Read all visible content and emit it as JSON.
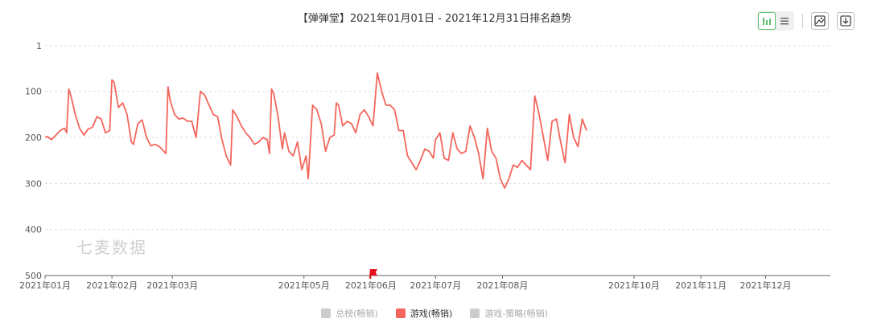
{
  "title": "【弹弹堂】2021年01月01日 - 2021年12月31日排名趋势",
  "watermark": "七麦数据",
  "toolbar": {
    "bar_icon": "bar-chart-icon",
    "list_icon": "list-icon",
    "image_icon": "image-icon",
    "download_icon": "download-icon"
  },
  "legend": [
    {
      "label": "总榜(畅销)",
      "color": "#cccccc",
      "active": false
    },
    {
      "label": "游戏(畅销)",
      "color": "#f4665c",
      "active": true
    },
    {
      "label": "游戏-策略(畅销)",
      "color": "#cccccc",
      "active": false
    }
  ],
  "colors": {
    "line": "#f4665c",
    "grid": "#dddddd",
    "axis": "#666666",
    "marker": "#e3121b"
  },
  "chart_data": {
    "type": "line",
    "y_inverted": true,
    "ylim": [
      1,
      500
    ],
    "y_ticks": [
      "1",
      "100",
      "200",
      "300",
      "400",
      "500"
    ],
    "y_tick_values": [
      1,
      100,
      200,
      300,
      400,
      500
    ],
    "x_ticks": [
      "2021年01月",
      "2021年02月",
      "2021年03月",
      "2021年05月",
      "2021年06月",
      "2021年07月",
      "2021年08月",
      "2021年10月",
      "2021年11月",
      "2021年12月"
    ],
    "x_tick_dates": [
      "2021-01-01",
      "2021-02-01",
      "2021-03-01",
      "2021-05-01",
      "2021-06-01",
      "2021-07-01",
      "2021-08-01",
      "2021-10-01",
      "2021-11-01",
      "2021-12-01"
    ],
    "x_range": [
      "2021-01-01",
      "2021-12-31"
    ],
    "grid": true,
    "legend_position": "bottom",
    "series": [
      {
        "name": "游戏(畅销)",
        "points": [
          [
            "2021-01-01",
            200
          ],
          [
            "2021-01-02",
            198
          ],
          [
            "2021-01-04",
            205
          ],
          [
            "2021-01-06",
            195
          ],
          [
            "2021-01-08",
            185
          ],
          [
            "2021-01-10",
            180
          ],
          [
            "2021-01-11",
            190
          ],
          [
            "2021-01-12",
            95
          ],
          [
            "2021-01-13",
            110
          ],
          [
            "2021-01-15",
            150
          ],
          [
            "2021-01-17",
            180
          ],
          [
            "2021-01-19",
            195
          ],
          [
            "2021-01-21",
            182
          ],
          [
            "2021-01-23",
            178
          ],
          [
            "2021-01-25",
            155
          ],
          [
            "2021-01-27",
            160
          ],
          [
            "2021-01-29",
            190
          ],
          [
            "2021-01-31",
            185
          ],
          [
            "2021-02-01",
            75
          ],
          [
            "2021-02-02",
            80
          ],
          [
            "2021-02-04",
            135
          ],
          [
            "2021-02-06",
            125
          ],
          [
            "2021-02-08",
            150
          ],
          [
            "2021-02-10",
            210
          ],
          [
            "2021-02-11",
            215
          ],
          [
            "2021-02-13",
            170
          ],
          [
            "2021-02-15",
            162
          ],
          [
            "2021-02-17",
            200
          ],
          [
            "2021-02-19",
            218
          ],
          [
            "2021-02-21",
            215
          ],
          [
            "2021-02-23",
            220
          ],
          [
            "2021-02-25",
            230
          ],
          [
            "2021-02-26",
            235
          ],
          [
            "2021-02-27",
            90
          ],
          [
            "2021-02-28",
            120
          ],
          [
            "2021-03-02",
            150
          ],
          [
            "2021-03-04",
            160
          ],
          [
            "2021-03-06",
            158
          ],
          [
            "2021-03-08",
            165
          ],
          [
            "2021-03-10",
            165
          ],
          [
            "2021-03-12",
            200
          ],
          [
            "2021-03-14",
            100
          ],
          [
            "2021-03-16",
            108
          ],
          [
            "2021-03-18",
            130
          ],
          [
            "2021-03-20",
            150
          ],
          [
            "2021-03-22",
            155
          ],
          [
            "2021-03-24",
            205
          ],
          [
            "2021-03-26",
            240
          ],
          [
            "2021-03-28",
            260
          ],
          [
            "2021-03-29",
            140
          ],
          [
            "2021-03-31",
            155
          ],
          [
            "2021-04-02",
            175
          ],
          [
            "2021-04-04",
            190
          ],
          [
            "2021-04-06",
            200
          ],
          [
            "2021-04-08",
            215
          ],
          [
            "2021-04-10",
            210
          ],
          [
            "2021-04-12",
            200
          ],
          [
            "2021-04-14",
            205
          ],
          [
            "2021-04-15",
            235
          ],
          [
            "2021-04-16",
            95
          ],
          [
            "2021-04-17",
            105
          ],
          [
            "2021-04-19",
            155
          ],
          [
            "2021-04-21",
            225
          ],
          [
            "2021-04-22",
            190
          ],
          [
            "2021-04-24",
            230
          ],
          [
            "2021-04-26",
            240
          ],
          [
            "2021-04-28",
            210
          ],
          [
            "2021-04-30",
            270
          ],
          [
            "2021-05-02",
            240
          ],
          [
            "2021-05-03",
            290
          ],
          [
            "2021-05-05",
            130
          ],
          [
            "2021-05-07",
            140
          ],
          [
            "2021-05-09",
            170
          ],
          [
            "2021-05-11",
            230
          ],
          [
            "2021-05-13",
            200
          ],
          [
            "2021-05-15",
            195
          ],
          [
            "2021-05-16",
            125
          ],
          [
            "2021-05-17",
            130
          ],
          [
            "2021-05-19",
            175
          ],
          [
            "2021-05-21",
            165
          ],
          [
            "2021-05-23",
            170
          ],
          [
            "2021-05-25",
            190
          ],
          [
            "2021-05-27",
            150
          ],
          [
            "2021-05-29",
            140
          ],
          [
            "2021-05-31",
            155
          ],
          [
            "2021-06-02",
            175
          ],
          [
            "2021-06-04",
            60
          ],
          [
            "2021-06-06",
            100
          ],
          [
            "2021-06-08",
            130
          ],
          [
            "2021-06-10",
            130
          ],
          [
            "2021-06-12",
            140
          ],
          [
            "2021-06-14",
            185
          ],
          [
            "2021-06-16",
            185
          ],
          [
            "2021-06-18",
            240
          ],
          [
            "2021-06-20",
            255
          ],
          [
            "2021-06-22",
            270
          ],
          [
            "2021-06-24",
            250
          ],
          [
            "2021-06-26",
            225
          ],
          [
            "2021-06-28",
            230
          ],
          [
            "2021-06-30",
            245
          ],
          [
            "2021-07-01",
            205
          ],
          [
            "2021-07-03",
            190
          ],
          [
            "2021-07-05",
            245
          ],
          [
            "2021-07-07",
            250
          ],
          [
            "2021-07-09",
            190
          ],
          [
            "2021-07-11",
            225
          ],
          [
            "2021-07-13",
            235
          ],
          [
            "2021-07-15",
            230
          ],
          [
            "2021-07-17",
            175
          ],
          [
            "2021-07-19",
            200
          ],
          [
            "2021-07-21",
            235
          ],
          [
            "2021-07-23",
            290
          ],
          [
            "2021-07-25",
            180
          ],
          [
            "2021-07-27",
            230
          ],
          [
            "2021-07-29",
            245
          ],
          [
            "2021-07-31",
            290
          ],
          [
            "2021-08-02",
            310
          ],
          [
            "2021-08-04",
            290
          ],
          [
            "2021-08-06",
            260
          ],
          [
            "2021-08-08",
            265
          ],
          [
            "2021-08-10",
            250
          ],
          [
            "2021-08-12",
            260
          ],
          [
            "2021-08-14",
            270
          ],
          [
            "2021-08-16",
            110
          ],
          [
            "2021-08-18",
            150
          ],
          [
            "2021-08-20",
            200
          ],
          [
            "2021-08-22",
            250
          ],
          [
            "2021-08-24",
            165
          ],
          [
            "2021-08-26",
            160
          ],
          [
            "2021-08-28",
            210
          ],
          [
            "2021-08-30",
            255
          ],
          [
            "2021-09-01",
            150
          ],
          [
            "2021-09-03",
            200
          ],
          [
            "2021-09-05",
            220
          ],
          [
            "2021-09-07",
            160
          ],
          [
            "2021-09-09",
            185
          ]
        ]
      }
    ]
  }
}
